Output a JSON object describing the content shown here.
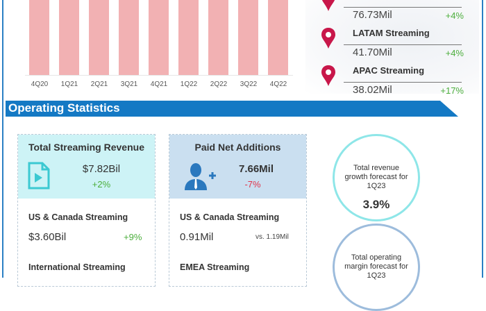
{
  "bar_chart": {
    "categories": [
      "4Q20",
      "1Q21",
      "2Q21",
      "3Q21",
      "4Q21",
      "1Q22",
      "2Q22",
      "3Q22",
      "4Q22"
    ],
    "bar_color": "#f2b1b3"
  },
  "regions": [
    {
      "label": "",
      "value": "76.73Mil",
      "change": "+4%"
    },
    {
      "label": "LATAM Streaming",
      "value": "41.70Mil",
      "change": "+4%"
    },
    {
      "label": "APAC Streaming",
      "value": "38.02Mil",
      "change": "+17%"
    }
  ],
  "section_title": "Operating Statistics",
  "revenue_card": {
    "title": "Total Streaming Revenue",
    "value": "$7.82Bil",
    "change": "+2%",
    "icon": "play-file-icon",
    "us_canada": {
      "label": "US & Canada Streaming",
      "value": "$3.60Bil",
      "change": "+9%"
    },
    "international": {
      "label": "International Streaming"
    }
  },
  "additions_card": {
    "title": "Paid Net Additions",
    "value": "7.66Mil",
    "change": "-7%",
    "icon": "add-user-icon",
    "us_canada": {
      "label": "US & Canada Streaming",
      "value": "0.91Mil",
      "compare": "vs. 1.19Mil"
    },
    "emea": {
      "label": "EMEA Streaming"
    }
  },
  "forecasts": [
    {
      "label": "Total revenue growth forecast for 1Q23",
      "value": "3.9%"
    },
    {
      "label": "Total operating margin forecast for 1Q23"
    }
  ],
  "colors": {
    "accent": "#1479c4",
    "positive": "#4cae3c",
    "negative": "#e0344a",
    "pin": "#c8174a"
  }
}
